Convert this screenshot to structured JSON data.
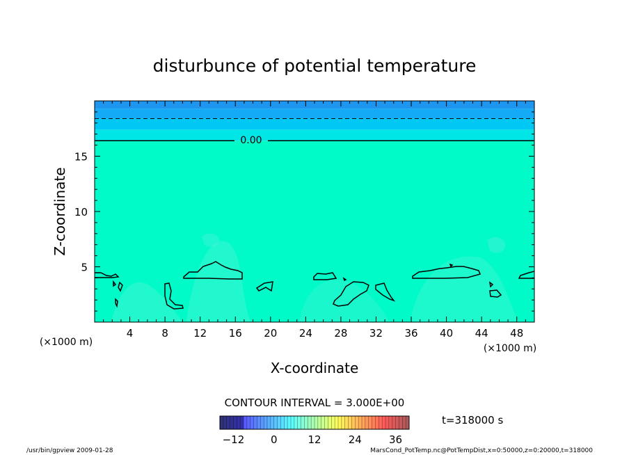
{
  "chart_data": {
    "type": "heatmap",
    "title": "disturbunce of potential temperature",
    "xlabel": "X-coordinate",
    "ylabel": "Z-coordinate",
    "x_unit_label_left": "(×1000 m)",
    "x_unit_label_right": "(×1000 m)",
    "xlim": [
      0,
      50
    ],
    "ylim": [
      0,
      20
    ],
    "x_ticks": [
      4,
      8,
      12,
      16,
      20,
      24,
      28,
      32,
      36,
      40,
      44,
      48
    ],
    "y_ticks": [
      5,
      10,
      15
    ],
    "contour_label": "0.00",
    "contour_interval_text": "CONTOUR INTERVAL = 3.000E+00",
    "time_text": "t=318000 s",
    "colorbar": {
      "range": [
        -16,
        40
      ],
      "tick_values": [
        -12,
        0,
        12,
        24,
        36
      ]
    },
    "layers": [
      {
        "z": [
          0,
          16.4
        ],
        "value": 0,
        "color": "#00FAC8"
      },
      {
        "z": [
          16.4,
          17.4
        ],
        "value": -2,
        "color": "#00E6E6"
      },
      {
        "z": [
          17.4,
          18.4
        ],
        "value": -5,
        "color": "#00C8F5"
      },
      {
        "z": [
          18.4,
          19.3
        ],
        "value": -8,
        "color": "#14AAF5"
      },
      {
        "z": [
          19.3,
          20
        ],
        "value": -11,
        "color": "#1E96F0"
      }
    ],
    "dashed_contour_z": 18.4,
    "solid_contour_z": 16.4,
    "footer_left": "/usr/bin/gpview  2009-01-28",
    "footer_right": "MarsCond_PotTemp.nc@PotTempDist,x=0:50000,z=0:20000,t=318000"
  }
}
